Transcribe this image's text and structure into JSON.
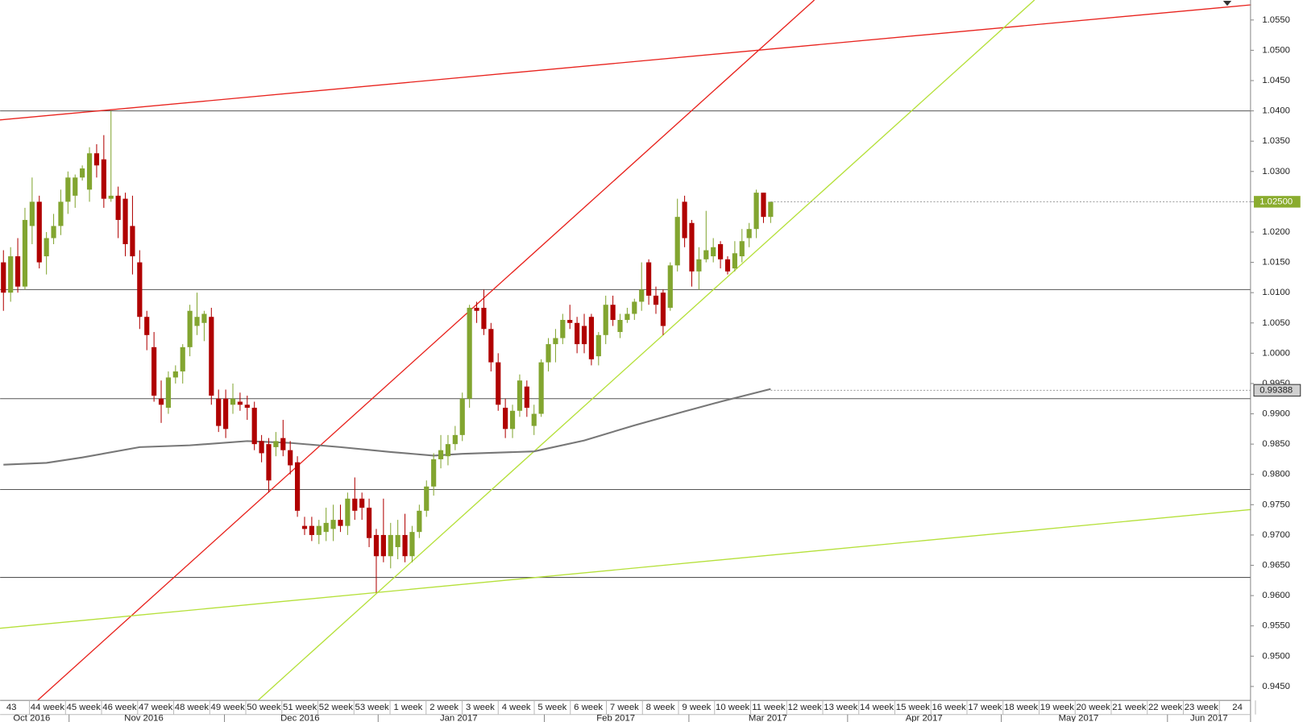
{
  "chart_data": {
    "type": "candlestick",
    "up_color": "#82a530",
    "down_color": "#b00000",
    "open": [
      1.015,
      1.01,
      1.016,
      1.011,
      1.021,
      1.025,
      1.016,
      1.019,
      1.021,
      1.025,
      1.026,
      1.029,
      1.027,
      1.033,
      1.032,
      1.0255,
      1.026,
      1.0255,
      1.021,
      1.015,
      1.006,
      1.001,
      0.9925,
      0.991,
      0.996,
      0.997,
      1.001,
      1.0045,
      1.005,
      1.006,
      0.9925,
      0.9925,
      0.9915,
      0.992,
      0.9915,
      0.991,
      0.9855,
      0.985,
      0.9845,
      0.986,
      0.984,
      0.982,
      0.9715,
      0.9715,
      0.97,
      0.9705,
      0.971,
      0.9725,
      0.9715,
      0.976,
      0.976,
      0.9745,
      0.97,
      0.97,
      0.9665,
      0.968,
      0.97,
      0.9665,
      0.9705,
      0.974,
      0.978,
      0.9825,
      0.983,
      0.985,
      0.9865,
      0.9925,
      1.0075,
      1.0075,
      1.004,
      0.9985,
      0.991,
      0.9875,
      0.9905,
      0.9945,
      0.988,
      0.99,
      0.9985,
      1.0015,
      1.0025,
      1.0055,
      1.005,
      1.0045,
      1.006,
      0.9995,
      1.003,
      1.008,
      1.0035,
      1.0055,
      1.0065,
      1.0085,
      1.015,
      1.0095,
      1.01,
      1.0075,
      1.0145,
      1.025,
      1.0215,
      1.0135,
      1.0155,
      1.016,
      1.018,
      1.0155,
      1.014,
      1.016,
      1.019,
      1.0205,
      1.0265,
      1.0225
    ],
    "high": [
      1.017,
      1.0175,
      1.019,
      1.024,
      1.029,
      1.026,
      1.02,
      1.023,
      1.027,
      1.03,
      1.0295,
      1.031,
      1.034,
      1.0345,
      1.036,
      1.04,
      1.0275,
      1.0265,
      1.026,
      1.017,
      1.007,
      1.0035,
      0.9955,
      0.997,
      0.998,
      1.0015,
      1.008,
      1.01,
      1.007,
      1.0075,
      0.994,
      0.994,
      0.995,
      0.9935,
      0.993,
      0.992,
      0.9865,
      0.986,
      0.987,
      0.989,
      0.9855,
      0.983,
      0.973,
      0.973,
      0.9725,
      0.9745,
      0.975,
      0.975,
      0.977,
      0.9795,
      0.977,
      0.976,
      0.971,
      0.976,
      0.972,
      0.9725,
      0.9735,
      0.9715,
      0.975,
      0.979,
      0.9835,
      0.9865,
      0.9865,
      0.988,
      0.9935,
      1.008,
      1.0085,
      1.0105,
      1.005,
      1.0,
      0.9925,
      0.9915,
      0.9965,
      0.9955,
      0.9915,
      0.999,
      1.0025,
      1.004,
      1.0065,
      1.008,
      1.006,
      1.0065,
      1.0065,
      1.0035,
      1.0095,
      1.0095,
      1.0065,
      1.0075,
      1.009,
      1.015,
      1.0155,
      1.011,
      1.0105,
      1.015,
      1.0255,
      1.026,
      1.022,
      1.0175,
      1.0235,
      1.019,
      1.0185,
      1.016,
      1.0185,
      1.0205,
      1.0215,
      1.027,
      1.0265,
      1.025
    ],
    "low": [
      1.007,
      1.0085,
      1.01,
      1.0105,
      1.018,
      1.014,
      1.013,
      1.018,
      1.0195,
      1.023,
      1.024,
      1.0285,
      1.025,
      1.029,
      1.024,
      1.025,
      1.019,
      1.016,
      1.013,
      1.004,
      1.0005,
      0.992,
      0.9885,
      0.99,
      0.995,
      0.995,
      0.9995,
      1.003,
      1.002,
      0.9915,
      0.987,
      0.986,
      0.99,
      0.9905,
      0.989,
      0.984,
      0.982,
      0.977,
      0.983,
      0.983,
      0.98,
      0.973,
      0.97,
      0.969,
      0.9685,
      0.969,
      0.969,
      0.9705,
      0.97,
      0.9725,
      0.9725,
      0.968,
      0.9605,
      0.9655,
      0.9645,
      0.966,
      0.9655,
      0.9655,
      0.9695,
      0.973,
      0.9765,
      0.981,
      0.9815,
      0.984,
      0.9855,
      0.991,
      1.005,
      1.003,
      0.997,
      0.9905,
      0.986,
      0.986,
      0.9895,
      0.9895,
      0.9865,
      0.9895,
      0.997,
      0.9985,
      1.0015,
      1.004,
      1.0,
      1.0,
      0.998,
      0.998,
      1.0015,
      1.0045,
      1.0025,
      1.005,
      1.0055,
      1.007,
      1.008,
      1.0065,
      1.003,
      1.007,
      1.0135,
      1.0175,
      1.011,
      1.0105,
      1.015,
      1.015,
      1.014,
      1.013,
      1.0135,
      1.015,
      1.0175,
      1.019,
      1.0215,
      1.0215
    ],
    "close": [
      1.01,
      1.016,
      1.011,
      1.022,
      1.025,
      1.015,
      1.019,
      1.021,
      1.025,
      1.029,
      1.029,
      1.0305,
      1.033,
      1.031,
      1.0255,
      1.026,
      1.022,
      1.018,
      1.016,
      1.006,
      1.003,
      0.993,
      0.9915,
      0.996,
      0.997,
      1.001,
      1.007,
      1.006,
      1.0065,
      0.993,
      0.988,
      0.9875,
      0.9925,
      0.9915,
      0.991,
      0.985,
      0.9835,
      0.979,
      0.9855,
      0.984,
      0.9815,
      0.974,
      0.971,
      0.97,
      0.9715,
      0.972,
      0.9725,
      0.9715,
      0.976,
      0.974,
      0.9745,
      0.9695,
      0.9665,
      0.9665,
      0.97,
      0.97,
      0.9665,
      0.9705,
      0.974,
      0.978,
      0.9825,
      0.984,
      0.985,
      0.9865,
      0.9925,
      1.0075,
      1.007,
      1.004,
      0.9985,
      0.9915,
      0.9875,
      0.9905,
      0.9955,
      0.991,
      0.99,
      0.9985,
      1.0015,
      1.0025,
      1.0055,
      1.005,
      1.0015,
      1.0015,
      0.999,
      1.003,
      1.008,
      1.0055,
      1.0055,
      1.0065,
      1.0085,
      1.0105,
      1.0095,
      1.008,
      1.0045,
      1.0145,
      1.0225,
      1.019,
      1.0135,
      1.0155,
      1.017,
      1.0175,
      1.0155,
      1.0135,
      1.0165,
      1.0185,
      1.0205,
      1.0265,
      1.0225,
      1.025
    ],
    "week_labels": [
      "43",
      "44 week",
      "45 week",
      "46 week",
      "47 week",
      "48 week",
      "49 week",
      "50 week",
      "51 week",
      "52 week",
      "53 week",
      "1 week",
      "2 week",
      "3 week",
      "4 week",
      "5 week",
      "6 week",
      "7 week",
      "8 week",
      "9 week",
      "10 week",
      "11 week",
      "12 week",
      "13 week",
      "14 week",
      "15 week",
      "16 week",
      "17 week",
      "18 week",
      "19 week",
      "20 week",
      "21 week",
      "22 week",
      "23 week",
      "24"
    ],
    "month_labels": [
      "Oct 2016",
      "Nov 2016",
      "Dec 2016",
      "Jan 2017",
      "Feb 2017",
      "Mar 2017",
      "Apr 2017",
      "May 2017",
      "Jun 2017"
    ],
    "ylim": [
      0.9427,
      1.0583
    ],
    "yticks": [
      {
        "value": 0.945,
        "label": "0.9450"
      },
      {
        "value": 0.95,
        "label": "0.9500"
      },
      {
        "value": 0.955,
        "label": "0.9550"
      },
      {
        "value": 0.96,
        "label": "0.9600"
      },
      {
        "value": 0.965,
        "label": "0.9650"
      },
      {
        "value": 0.97,
        "label": "0.9700"
      },
      {
        "value": 0.975,
        "label": "0.9750"
      },
      {
        "value": 0.98,
        "label": "0.9800"
      },
      {
        "value": 0.985,
        "label": "0.9850"
      },
      {
        "value": 0.99,
        "label": "0.9900"
      },
      {
        "value": 0.995,
        "label": "0.9950"
      },
      {
        "value": 1.0,
        "label": "1.0000"
      },
      {
        "value": 1.005,
        "label": "1.0050"
      },
      {
        "value": 1.01,
        "label": "1.0100"
      },
      {
        "value": 1.015,
        "label": "1.0150"
      },
      {
        "value": 1.02,
        "label": "1.0200"
      },
      {
        "value": 1.025,
        "label": "1.0250"
      },
      {
        "value": 1.03,
        "label": "1.0300"
      },
      {
        "value": 1.035,
        "label": "1.0350"
      },
      {
        "value": 1.04,
        "label": "1.0400"
      },
      {
        "value": 1.045,
        "label": "1.0450"
      },
      {
        "value": 1.05,
        "label": "1.0500"
      },
      {
        "value": 1.055,
        "label": "1.0550"
      }
    ],
    "levels": [
      1.04,
      1.0105,
      0.9925,
      0.9775,
      0.963
    ],
    "level_color": "#555555",
    "lines": [
      {
        "color": "#e8231e",
        "x": [
          -0.5,
          174
        ],
        "y": [
          1.0385,
          1.0575
        ]
      },
      {
        "color": "#e8231e",
        "x": [
          4.75,
          113.1
        ],
        "y": [
          0.9427,
          1.0583
        ]
      },
      {
        "color": "#b5e03a",
        "x": [
          35.5,
          143.8
        ],
        "y": [
          0.9427,
          1.0583
        ]
      },
      {
        "color": "#b5e03a",
        "x": [
          -0.5,
          174
        ],
        "y": [
          0.9546,
          0.9742
        ]
      }
    ],
    "moving_average": {
      "color": "#777777",
      "x": [
        0,
        6,
        11,
        19,
        26,
        34,
        40,
        47,
        54,
        60,
        64,
        74,
        81,
        88,
        95,
        100,
        107
      ],
      "y": [
        0.9816,
        0.9819,
        0.9828,
        0.9845,
        0.9848,
        0.9855,
        0.9852,
        0.9845,
        0.9837,
        0.9831,
        0.9834,
        0.9838,
        0.9856,
        0.9881,
        0.9904,
        0.992,
        0.9941
      ]
    },
    "last_price": {
      "value": 1.025,
      "label": "1.02500",
      "color": "#8aac2e"
    },
    "ma_marker": {
      "value": 0.99388,
      "label": "0.99388"
    }
  }
}
